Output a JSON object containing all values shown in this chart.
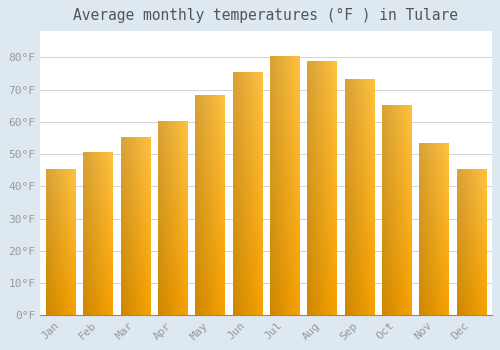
{
  "title": "Average monthly temperatures (°F ) in Tulare",
  "months": [
    "Jan",
    "Feb",
    "Mar",
    "Apr",
    "May",
    "Jun",
    "Jul",
    "Aug",
    "Sep",
    "Oct",
    "Nov",
    "Dec"
  ],
  "values": [
    45,
    50.5,
    55,
    60,
    68,
    75,
    80,
    78.5,
    73,
    65,
    53,
    45
  ],
  "bar_color_top": "#FFC040",
  "bar_color_bottom": "#F5A000",
  "bar_color_left": "#E89020",
  "background_color": "#dde8f0",
  "plot_bg_color": "#ffffff",
  "grid_color": "#cccccc",
  "ytick_step": 10,
  "ymin": 0,
  "ymax": 88,
  "title_fontsize": 10.5,
  "tick_fontsize": 8,
  "tick_label_color": "#999999",
  "bar_width": 0.78
}
